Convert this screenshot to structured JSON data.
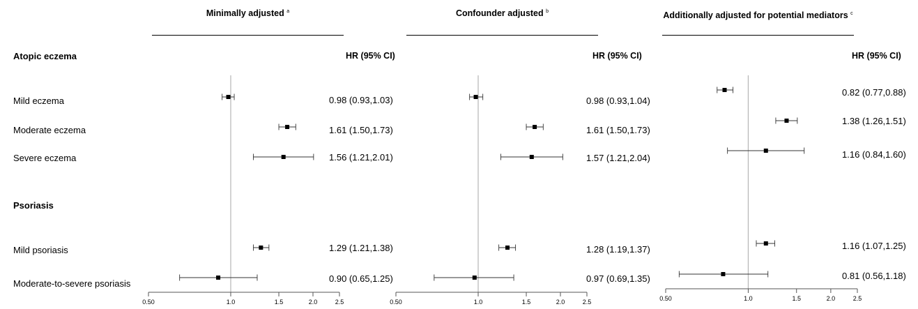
{
  "rows": {
    "group_eczema": "Atopic eczema",
    "mild_eczema": "Mild eczema",
    "moderate_eczema": "Moderate eczema",
    "severe_eczema": "Severe eczema",
    "group_psoriasis": "Psoriasis",
    "mild_psoriasis": "Mild psoriasis",
    "modsev_psoriasis": "Moderate-to-severe psoriasis"
  },
  "chart_data": {
    "type": "forest",
    "x_scale": "log",
    "xlim": [
      0.5,
      2.5
    ],
    "reference_line": 1.0,
    "row_order": [
      "Mild eczema",
      "Moderate eczema",
      "Severe eczema",
      "Mild psoriasis",
      "Moderate-to-severe psoriasis"
    ],
    "panels": [
      {
        "title": "Minimally adjusted",
        "title_sup": "a",
        "hr_header": "HR (95% CI)",
        "tick_labels": [
          "0.50",
          "1.0",
          "1.5",
          "2.0",
          "2.5"
        ],
        "ticks": [
          0.5,
          1.0,
          1.5,
          2.0,
          2.5
        ],
        "points": [
          {
            "hr": 0.98,
            "lo": 0.93,
            "hi": 1.03,
            "label": "0.98 (0.93,1.03)"
          },
          {
            "hr": 1.61,
            "lo": 1.5,
            "hi": 1.73,
            "label": "1.61 (1.50,1.73)"
          },
          {
            "hr": 1.56,
            "lo": 1.21,
            "hi": 2.01,
            "label": "1.56 (1.21,2.01)"
          },
          {
            "hr": 1.29,
            "lo": 1.21,
            "hi": 1.38,
            "label": "1.29 (1.21,1.38)"
          },
          {
            "hr": 0.9,
            "lo": 0.65,
            "hi": 1.25,
            "label": "0.90 (0.65,1.25)"
          }
        ]
      },
      {
        "title": "Confounder adjusted",
        "title_sup": "b",
        "hr_header": "HR (95% CI)",
        "tick_labels": [
          "0.50",
          "1.0",
          "1.5",
          "2.0",
          "2.5"
        ],
        "ticks": [
          0.5,
          1.0,
          1.5,
          2.0,
          2.5
        ],
        "points": [
          {
            "hr": 0.98,
            "lo": 0.93,
            "hi": 1.04,
            "label": "0.98 (0.93,1.04)"
          },
          {
            "hr": 1.61,
            "lo": 1.5,
            "hi": 1.73,
            "label": "1.61 (1.50,1.73)"
          },
          {
            "hr": 1.57,
            "lo": 1.21,
            "hi": 2.04,
            "label": "1.57 (1.21,2.04)"
          },
          {
            "hr": 1.28,
            "lo": 1.19,
            "hi": 1.37,
            "label": "1.28 (1.19,1.37)"
          },
          {
            "hr": 0.97,
            "lo": 0.69,
            "hi": 1.35,
            "label": "0.97 (0.69,1.35)"
          }
        ]
      },
      {
        "title": "Additionally adjusted for potential mediators",
        "title_sup": "c",
        "hr_header": "HR (95% CI)",
        "tick_labels": [
          "0.50",
          "1.0",
          "1.5",
          "2.0",
          "2.5"
        ],
        "ticks": [
          0.5,
          1.0,
          1.5,
          2.0,
          2.5
        ],
        "points": [
          {
            "hr": 0.82,
            "lo": 0.77,
            "hi": 0.88,
            "label": "0.82 (0.77,0.88)"
          },
          {
            "hr": 1.38,
            "lo": 1.26,
            "hi": 1.51,
            "label": "1.38 (1.26,1.51)"
          },
          {
            "hr": 1.16,
            "lo": 0.84,
            "hi": 1.6,
            "label": "1.16 (0.84,1.60)"
          },
          {
            "hr": 1.16,
            "lo": 1.07,
            "hi": 1.25,
            "label": "1.16 (1.07,1.25)"
          },
          {
            "hr": 0.81,
            "lo": 0.56,
            "hi": 1.18,
            "label": "0.81 (0.56,1.18)"
          }
        ]
      }
    ]
  }
}
